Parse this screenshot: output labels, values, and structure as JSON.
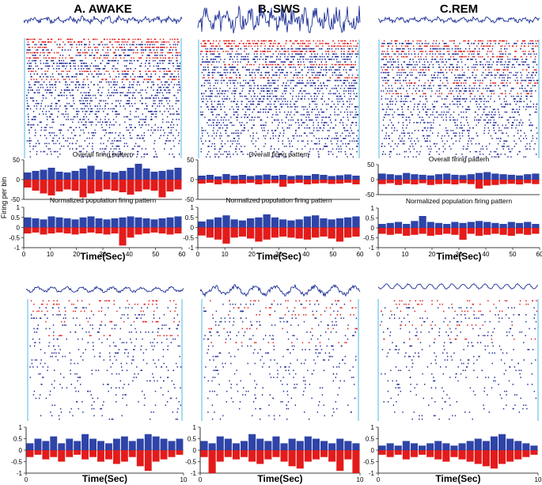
{
  "figure": {
    "columns": [
      "A. AWAKE",
      "B. SWS",
      "C.REM"
    ],
    "ylabel": "Firing per bin",
    "overall_label": "Overall firing pattern",
    "normalized_label": "Normalized population firing pattern"
  },
  "colors": {
    "positive": "#2e44a8",
    "negative": "#e41b1b",
    "lfp": "#1c2f96",
    "raster_blue": "#24309a",
    "raster_red": "#e01f1f",
    "boundary": "#4fb8e6"
  },
  "chart_data": [
    {
      "type": "bar",
      "state": "A. AWAKE",
      "panel": "overall",
      "x_range": [
        0,
        60
      ],
      "ylim": [
        -50,
        50
      ],
      "yticks": [
        -50,
        0,
        50
      ],
      "title": "Overall firing pattern",
      "series": [
        {
          "name": "",
          "values": [
            18,
            22,
            25,
            30,
            20,
            18,
            22,
            28,
            35,
            25,
            20,
            18,
            22,
            30,
            40,
            28,
            20,
            22,
            25,
            30
          ]
        },
        {
          "name": "",
          "values": [
            -20,
            -28,
            -35,
            -40,
            -30,
            -25,
            -28,
            -45,
            -35,
            -30,
            -25,
            -28,
            -32,
            -38,
            -30,
            -25,
            -28,
            -45,
            -30,
            -25
          ]
        }
      ]
    },
    {
      "type": "bar",
      "state": "A. AWAKE",
      "panel": "normalized",
      "x_range": [
        0,
        60
      ],
      "ylim": [
        -1,
        1
      ],
      "yticks": [
        -1,
        -0.5,
        0,
        0.5,
        1
      ],
      "xticks": [
        0,
        10,
        20,
        30,
        40,
        50,
        60
      ],
      "xlabel": "Time(Sec)",
      "title": "Normalized population firing pattern",
      "series": [
        {
          "name": "",
          "values": [
            0.3,
            0.4,
            0.5,
            0.6,
            0.4,
            0.35,
            0.45,
            0.5,
            0.65,
            0.5,
            0.4,
            0.35,
            0.4,
            0.55,
            0.6,
            0.45,
            0.4,
            0.45,
            0.5,
            0.55
          ]
        },
        {
          "name": "",
          "values": [
            -0.4,
            -0.5,
            -0.6,
            -0.8,
            -0.5,
            -0.45,
            -0.55,
            -0.7,
            -0.6,
            -0.5,
            -0.45,
            -0.5,
            -0.55,
            -0.6,
            -0.5,
            -0.45,
            -0.55,
            -0.7,
            -0.5,
            -0.45
          ]
        }
      ]
    },
    {
      "type": "bar",
      "state": "B. SWS",
      "panel": "overall",
      "x_range": [
        0,
        60
      ],
      "ylim": [
        -50,
        50
      ],
      "yticks": [
        -50,
        0,
        50
      ],
      "title": "Overall firing pattern",
      "series": [
        {
          "name": "",
          "values": [
            20,
            18,
            15,
            22,
            18,
            16,
            14,
            18,
            20,
            16,
            15,
            18,
            22,
            25,
            20,
            18,
            16,
            14,
            18,
            20
          ]
        },
        {
          "name": "",
          "values": [
            -15,
            -12,
            -18,
            -14,
            -16,
            -12,
            -18,
            -15,
            -14,
            -16,
            -12,
            -15,
            -30,
            -20,
            -18,
            -15,
            -14,
            -16,
            -12,
            -15
          ]
        }
      ]
    },
    {
      "type": "bar",
      "state": "B. SWS",
      "panel": "normalized",
      "x_range": [
        0,
        60
      ],
      "ylim": [
        -1,
        1
      ],
      "yticks": [
        -1,
        -0.5,
        0,
        0.5,
        1
      ],
      "xticks": [
        0,
        10,
        20,
        30,
        40,
        50,
        60
      ],
      "xlabel": "Time(Sec)",
      "title": "Normalized population firing pattern",
      "series": [
        {
          "name": "",
          "values": [
            0.5,
            0.45,
            0.4,
            0.55,
            0.5,
            0.45,
            0.4,
            0.5,
            0.55,
            0.45,
            0.4,
            0.45,
            0.5,
            0.55,
            0.5,
            0.45,
            0.4,
            0.45,
            0.5,
            0.55
          ]
        },
        {
          "name": "",
          "values": [
            -0.3,
            -0.25,
            -0.35,
            -0.3,
            -0.25,
            -0.3,
            -0.35,
            -0.3,
            -0.25,
            -0.3,
            -0.35,
            -0.3,
            -0.9,
            -0.5,
            -0.35,
            -0.3,
            -0.25,
            -0.3,
            -0.35,
            -0.3
          ]
        }
      ]
    },
    {
      "type": "bar",
      "state": "C.REM",
      "panel": "overall",
      "x_range": [
        0,
        60
      ],
      "ylim": [
        -50,
        50
      ],
      "yticks": [
        -50,
        0,
        50
      ],
      "title": "Overall firing pattern",
      "series": [
        {
          "name": "",
          "values": [
            10,
            12,
            8,
            14,
            10,
            12,
            9,
            11,
            13,
            10,
            12,
            9,
            11,
            10,
            14,
            12,
            9,
            11,
            13,
            10
          ]
        },
        {
          "name": "",
          "values": [
            -10,
            -8,
            -12,
            -9,
            -11,
            -10,
            -8,
            -12,
            -10,
            -9,
            -18,
            -10,
            -8,
            -12,
            -10,
            -9,
            -11,
            -10,
            -8,
            -12
          ]
        }
      ]
    },
    {
      "type": "bar",
      "state": "C.REM",
      "panel": "normalized",
      "x_range": [
        0,
        60
      ],
      "ylim": [
        -1,
        1
      ],
      "yticks": [
        -1,
        -0.5,
        0,
        0.5,
        1
      ],
      "xticks": [
        0,
        10,
        20,
        30,
        40,
        50,
        60
      ],
      "xlabel": "Time(Sec)",
      "title": "Normalized population firing pattern",
      "series": [
        {
          "name": "",
          "values": [
            0.2,
            0.25,
            0.3,
            0.2,
            0.35,
            0.6,
            0.3,
            0.25,
            0.2,
            0.3,
            0.25,
            0.3,
            0.35,
            0.3,
            0.25,
            0.2,
            0.3,
            0.25,
            0.3,
            0.2
          ]
        },
        {
          "name": "",
          "values": [
            -0.3,
            -0.35,
            -0.3,
            -0.4,
            -0.35,
            -0.3,
            -0.4,
            -0.35,
            -0.3,
            -0.35,
            -0.6,
            -0.3,
            -0.4,
            -0.35,
            -0.3,
            -0.35,
            -0.4,
            -0.3,
            -0.35,
            -0.3
          ]
        }
      ]
    },
    {
      "type": "bar",
      "state": "A. AWAKE",
      "panel": "zoom",
      "x_range": [
        0,
        10
      ],
      "ylim": [
        -1,
        1
      ],
      "yticks": [
        -1,
        -0.5,
        0,
        0.5,
        1
      ],
      "xticks": [
        0,
        10
      ],
      "xlabel": "Time(Sec)",
      "series": [
        {
          "name": "",
          "values": [
            0.3,
            0.5,
            0.4,
            0.6,
            0.3,
            0.5,
            0.4,
            0.7,
            0.5,
            0.4,
            0.3,
            0.5,
            0.6,
            0.4,
            0.5,
            0.7,
            0.6,
            0.5,
            0.4,
            0.5
          ]
        },
        {
          "name": "",
          "values": [
            -0.3,
            -0.2,
            -0.4,
            -0.3,
            -0.5,
            -0.3,
            -0.2,
            -0.4,
            -0.3,
            -0.5,
            -0.4,
            -0.6,
            -0.5,
            -0.3,
            -0.7,
            -0.9,
            -0.5,
            -0.4,
            -0.3,
            -0.2
          ]
        }
      ]
    },
    {
      "type": "bar",
      "state": "B. SWS",
      "panel": "zoom",
      "x_range": [
        0,
        10
      ],
      "ylim": [
        -1,
        1
      ],
      "yticks": [
        -1,
        -0.5,
        0,
        0.5,
        1
      ],
      "xticks": [
        0,
        10
      ],
      "xlabel": "Time(Sec)",
      "series": [
        {
          "name": "",
          "values": [
            0.4,
            0.3,
            0.6,
            0.5,
            0.3,
            0.4,
            0.7,
            0.5,
            0.4,
            0.6,
            0.3,
            0.5,
            0.4,
            0.6,
            0.5,
            0.4,
            0.3,
            0.5,
            0.4,
            0.3
          ]
        },
        {
          "name": "",
          "values": [
            -0.3,
            -1,
            -0.5,
            -0.3,
            -0.4,
            -0.3,
            -0.5,
            -0.6,
            -0.4,
            -0.3,
            -0.5,
            -0.7,
            -0.8,
            -0.5,
            -0.4,
            -0.3,
            -0.5,
            -0.9,
            -0.4,
            -1
          ]
        }
      ]
    },
    {
      "type": "bar",
      "state": "C.REM",
      "panel": "zoom",
      "x_range": [
        0,
        10
      ],
      "ylim": [
        -1,
        1
      ],
      "yticks": [
        -1,
        -0.5,
        0,
        0.5,
        1
      ],
      "xticks": [
        0,
        10
      ],
      "xlabel": "Time(Sec)",
      "series": [
        {
          "name": "",
          "values": [
            0.2,
            0.3,
            0.2,
            0.4,
            0.3,
            0.2,
            0.3,
            0.4,
            0.3,
            0.2,
            0.3,
            0.4,
            0.5,
            0.4,
            0.6,
            0.7,
            0.5,
            0.4,
            0.3,
            0.2
          ]
        },
        {
          "name": "",
          "values": [
            -0.2,
            -0.3,
            -0.2,
            -0.4,
            -0.3,
            -0.2,
            -0.3,
            -0.4,
            -0.5,
            -0.3,
            -0.4,
            -0.5,
            -0.6,
            -0.7,
            -0.8,
            -0.6,
            -0.5,
            -0.4,
            -0.3,
            -0.2
          ]
        }
      ]
    }
  ]
}
